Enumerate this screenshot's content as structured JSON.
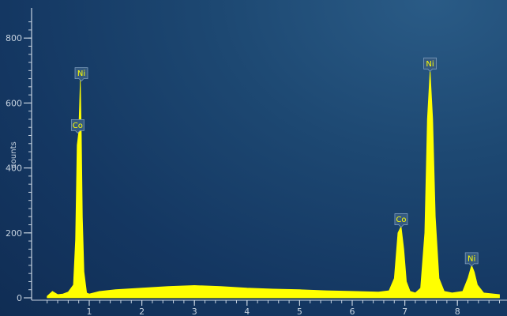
{
  "chart_data": {
    "type": "area",
    "ylabel": "counts",
    "xlim": [
      0.2,
      8.8
    ],
    "ylim": [
      -10,
      880
    ],
    "y_ticks": [
      0,
      200,
      400,
      600,
      800
    ],
    "x_ticks": [
      1,
      2,
      3,
      4,
      5,
      6,
      7,
      8
    ],
    "grid": false,
    "colors": {
      "fill": "#ffff00",
      "axis": "#c6d2df",
      "label_box": "#355a80",
      "label_text": "#ffff00"
    },
    "spectrum": {
      "x": [
        0.2,
        0.3,
        0.4,
        0.5,
        0.6,
        0.7,
        0.74,
        0.77,
        0.8,
        0.83,
        0.85,
        0.87,
        0.9,
        0.95,
        1.0,
        1.2,
        1.5,
        2.0,
        2.5,
        3.0,
        3.5,
        4.0,
        4.5,
        5.0,
        5.5,
        6.0,
        6.5,
        6.7,
        6.8,
        6.87,
        6.93,
        6.98,
        7.03,
        7.1,
        7.2,
        7.3,
        7.38,
        7.43,
        7.48,
        7.53,
        7.58,
        7.65,
        7.75,
        7.9,
        8.1,
        8.2,
        8.27,
        8.32,
        8.38,
        8.5,
        8.8
      ],
      "y": [
        5,
        20,
        10,
        12,
        18,
        40,
        180,
        470,
        510,
        670,
        500,
        250,
        80,
        15,
        12,
        20,
        25,
        30,
        35,
        38,
        35,
        30,
        27,
        25,
        22,
        20,
        18,
        22,
        60,
        200,
        220,
        150,
        50,
        20,
        15,
        30,
        200,
        550,
        700,
        550,
        250,
        60,
        20,
        15,
        20,
        60,
        100,
        80,
        40,
        15,
        10
      ]
    },
    "peaks": [
      {
        "element": "Ni",
        "energy": 0.85,
        "counts": 670
      },
      {
        "element": "Co",
        "energy": 0.78,
        "counts": 510
      },
      {
        "element": "Co",
        "energy": 6.93,
        "counts": 220
      },
      {
        "element": "Ni",
        "energy": 7.48,
        "counts": 700
      },
      {
        "element": "Ni",
        "energy": 8.27,
        "counts": 100
      }
    ]
  }
}
